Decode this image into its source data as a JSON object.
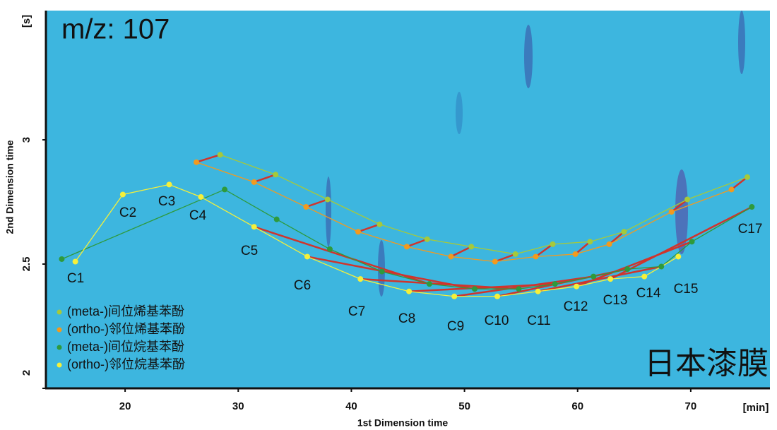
{
  "chart_data": {
    "type": "scatter",
    "title": "m/z: 107",
    "x_label": "1st Dimension time",
    "y_label": "2nd Dimension time",
    "x_unit": "[min]",
    "y_unit": "[s]",
    "annotation": "日本漆膜",
    "xlim": [
      13,
      77
    ],
    "ylim": [
      2.0,
      3.52
    ],
    "xticks": [
      20,
      30,
      40,
      50,
      60,
      70
    ],
    "yticks": [
      2.0,
      2.5,
      3.0
    ],
    "legend": "lower left",
    "labels": [
      "C1",
      "C2",
      "C3",
      "C4",
      "C5",
      "C6",
      "C7",
      "C8",
      "C9",
      "C10",
      "C11",
      "C12",
      "C13",
      "C14",
      "C15",
      "C17"
    ],
    "series": [
      {
        "name": "(meta-)间位烯基苯酚",
        "color": "#a6c93a",
        "x": [
          28.4,
          33.3,
          37.9,
          42.5,
          46.7,
          50.6,
          54.5,
          57.8,
          61.1,
          64.1,
          69.7,
          75.0
        ],
        "values": [
          2.94,
          2.86,
          2.76,
          2.66,
          2.6,
          2.57,
          2.54,
          2.58,
          2.59,
          2.63,
          2.76,
          2.85
        ]
      },
      {
        "name": "(ortho-)邻位烯基苯酚",
        "color": "#f39a1e",
        "x": [
          26.3,
          31.4,
          36.0,
          40.6,
          44.9,
          48.8,
          52.7,
          56.3,
          59.8,
          62.8,
          68.3,
          73.6
        ],
        "values": [
          2.91,
          2.83,
          2.73,
          2.63,
          2.57,
          2.53,
          2.51,
          2.53,
          2.54,
          2.58,
          2.71,
          2.8
        ]
      },
      {
        "name": "(meta-)间位烷基苯酚",
        "color": "#2e9a3c",
        "x": [
          14.4,
          28.8,
          33.4,
          38.1,
          42.7,
          46.9,
          50.9,
          54.8,
          58.0,
          61.4,
          64.4,
          67.4,
          70.1,
          75.4
        ],
        "values": [
          2.52,
          2.8,
          2.68,
          2.56,
          2.47,
          2.42,
          2.4,
          2.4,
          2.42,
          2.45,
          2.48,
          2.49,
          2.59,
          2.73
        ]
      },
      {
        "name": "(ortho-)邻位烷基苯酚",
        "color": "#f5f03a",
        "x": [
          15.6,
          19.8,
          23.9,
          26.7,
          31.4,
          36.1,
          40.8,
          45.1,
          49.1,
          52.9,
          56.5,
          59.9,
          62.9,
          65.9,
          68.9
        ],
        "values": [
          2.51,
          2.78,
          2.82,
          2.77,
          2.65,
          2.53,
          2.44,
          2.39,
          2.37,
          2.37,
          2.39,
          2.41,
          2.44,
          2.45,
          2.53
        ]
      }
    ]
  }
}
